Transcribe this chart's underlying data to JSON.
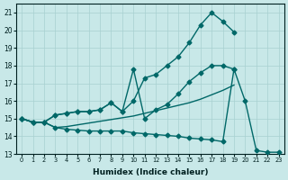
{
  "xlabel": "Humidex (Indice chaleur)",
  "bg_color": "#c8e8e8",
  "grid_color": "#a8d0d0",
  "line_color": "#006868",
  "xlim": [
    -0.5,
    23.5
  ],
  "ylim": [
    13.0,
    21.5
  ],
  "yticks": [
    13,
    14,
    15,
    16,
    17,
    18,
    19,
    20,
    21
  ],
  "line1_x": [
    0,
    1,
    2,
    3,
    4,
    5,
    6,
    7,
    8,
    9,
    10,
    11,
    12,
    13,
    14,
    15,
    16,
    17,
    18,
    19
  ],
  "line1_y": [
    15.0,
    14.8,
    14.8,
    14.5,
    14.55,
    14.65,
    14.75,
    14.85,
    14.95,
    15.05,
    15.15,
    15.3,
    15.45,
    15.6,
    15.75,
    15.9,
    16.1,
    16.35,
    16.6,
    16.9
  ],
  "line2_x": [
    0,
    1,
    2,
    3,
    4,
    5,
    6,
    7,
    8,
    9,
    10,
    11,
    12,
    13,
    14,
    15,
    16,
    17,
    18,
    19
  ],
  "line2_y": [
    15.0,
    14.8,
    14.8,
    15.2,
    15.3,
    15.4,
    15.4,
    15.5,
    15.9,
    15.4,
    16.0,
    17.3,
    17.5,
    18.0,
    18.5,
    19.3,
    20.3,
    21.0,
    20.5,
    19.9
  ],
  "line3_x": [
    0,
    1,
    2,
    3,
    4,
    5,
    6,
    7,
    8,
    9,
    10,
    11,
    12,
    13,
    14,
    15,
    16,
    17,
    18,
    19
  ],
  "line3_y": [
    15.0,
    14.8,
    14.8,
    15.2,
    15.3,
    15.4,
    15.4,
    15.5,
    15.9,
    15.4,
    17.8,
    15.0,
    15.5,
    15.8,
    16.4,
    17.1,
    17.6,
    18.0,
    18.0,
    17.8
  ],
  "line4_x": [
    0,
    1,
    2,
    3,
    4,
    5,
    6,
    7,
    8,
    9,
    10,
    11,
    12,
    13,
    14,
    15,
    16,
    17,
    18,
    19,
    20,
    21,
    22,
    23
  ],
  "line4_y": [
    15.0,
    14.8,
    14.8,
    14.5,
    14.4,
    14.35,
    14.3,
    14.3,
    14.3,
    14.3,
    14.2,
    14.15,
    14.1,
    14.05,
    14.0,
    13.9,
    13.85,
    13.8,
    13.7,
    17.8,
    16.0,
    13.2,
    13.1,
    13.1
  ]
}
